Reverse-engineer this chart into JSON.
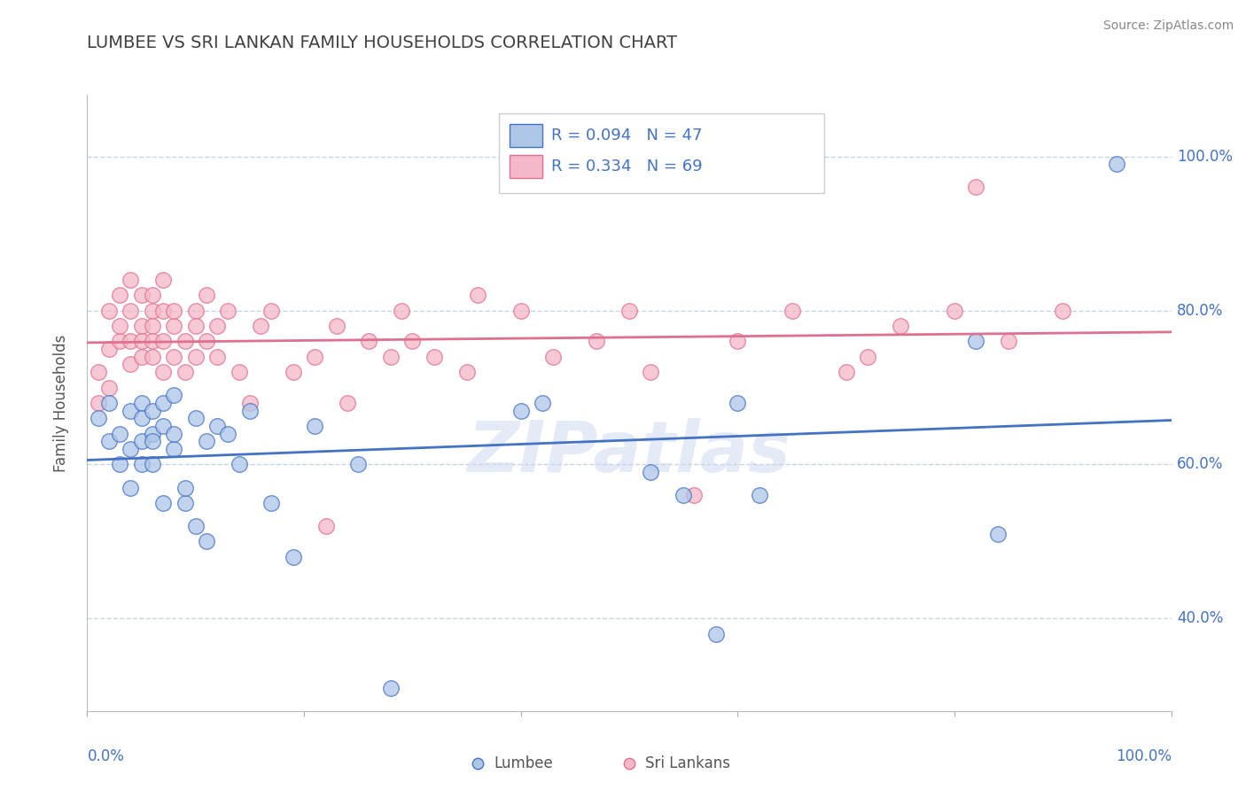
{
  "title": "LUMBEE VS SRI LANKAN FAMILY HOUSEHOLDS CORRELATION CHART",
  "source": "Source: ZipAtlas.com",
  "ylabel": "Family Households",
  "watermark": "ZIPatlas",
  "lumbee_R": 0.094,
  "lumbee_N": 47,
  "srilankan_R": 0.334,
  "srilankan_N": 69,
  "lumbee_color": "#aec6e8",
  "srilankan_color": "#f5b8c8",
  "lumbee_line_color": "#4472c4",
  "srilankan_line_color": "#e07090",
  "title_color": "#404040",
  "axis_label_color": "#4472c4",
  "background_color": "#ffffff",
  "grid_color": "#c8d4e8",
  "ytick_labels": [
    "40.0%",
    "60.0%",
    "80.0%",
    "100.0%"
  ],
  "ytick_values": [
    0.4,
    0.6,
    0.8,
    1.0
  ],
  "xlim": [
    0.0,
    1.0
  ],
  "ylim": [
    0.28,
    1.08
  ],
  "lumbee_x": [
    0.01,
    0.02,
    0.02,
    0.03,
    0.03,
    0.04,
    0.04,
    0.04,
    0.05,
    0.05,
    0.05,
    0.05,
    0.06,
    0.06,
    0.06,
    0.06,
    0.07,
    0.07,
    0.07,
    0.08,
    0.08,
    0.08,
    0.09,
    0.09,
    0.1,
    0.1,
    0.11,
    0.11,
    0.12,
    0.13,
    0.14,
    0.15,
    0.17,
    0.19,
    0.21,
    0.25,
    0.28,
    0.4,
    0.42,
    0.52,
    0.55,
    0.58,
    0.6,
    0.62,
    0.82,
    0.84,
    0.95
  ],
  "lumbee_y": [
    0.66,
    0.63,
    0.68,
    0.6,
    0.64,
    0.62,
    0.57,
    0.67,
    0.63,
    0.6,
    0.68,
    0.66,
    0.64,
    0.6,
    0.67,
    0.63,
    0.55,
    0.68,
    0.65,
    0.62,
    0.69,
    0.64,
    0.55,
    0.57,
    0.66,
    0.52,
    0.5,
    0.63,
    0.65,
    0.64,
    0.6,
    0.67,
    0.55,
    0.48,
    0.65,
    0.6,
    0.31,
    0.67,
    0.68,
    0.59,
    0.56,
    0.38,
    0.68,
    0.56,
    0.76,
    0.51,
    0.99
  ],
  "srilankan_x": [
    0.01,
    0.01,
    0.02,
    0.02,
    0.02,
    0.03,
    0.03,
    0.03,
    0.04,
    0.04,
    0.04,
    0.04,
    0.05,
    0.05,
    0.05,
    0.05,
    0.06,
    0.06,
    0.06,
    0.06,
    0.06,
    0.07,
    0.07,
    0.07,
    0.07,
    0.08,
    0.08,
    0.08,
    0.09,
    0.09,
    0.1,
    0.1,
    0.1,
    0.11,
    0.11,
    0.12,
    0.12,
    0.13,
    0.14,
    0.15,
    0.16,
    0.17,
    0.19,
    0.21,
    0.23,
    0.26,
    0.29,
    0.32,
    0.36,
    0.4,
    0.43,
    0.47,
    0.5,
    0.52,
    0.56,
    0.6,
    0.65,
    0.7,
    0.72,
    0.75,
    0.8,
    0.82,
    0.85,
    0.9,
    0.22,
    0.24,
    0.28,
    0.3,
    0.35
  ],
  "srilankan_y": [
    0.72,
    0.68,
    0.75,
    0.8,
    0.7,
    0.76,
    0.82,
    0.78,
    0.73,
    0.8,
    0.76,
    0.84,
    0.78,
    0.74,
    0.82,
    0.76,
    0.8,
    0.74,
    0.78,
    0.82,
    0.76,
    0.8,
    0.76,
    0.72,
    0.84,
    0.78,
    0.74,
    0.8,
    0.76,
    0.72,
    0.8,
    0.74,
    0.78,
    0.76,
    0.82,
    0.78,
    0.74,
    0.8,
    0.72,
    0.68,
    0.78,
    0.8,
    0.72,
    0.74,
    0.78,
    0.76,
    0.8,
    0.74,
    0.82,
    0.8,
    0.74,
    0.76,
    0.8,
    0.72,
    0.56,
    0.76,
    0.8,
    0.72,
    0.74,
    0.78,
    0.8,
    0.96,
    0.76,
    0.8,
    0.52,
    0.68,
    0.74,
    0.76,
    0.72
  ]
}
